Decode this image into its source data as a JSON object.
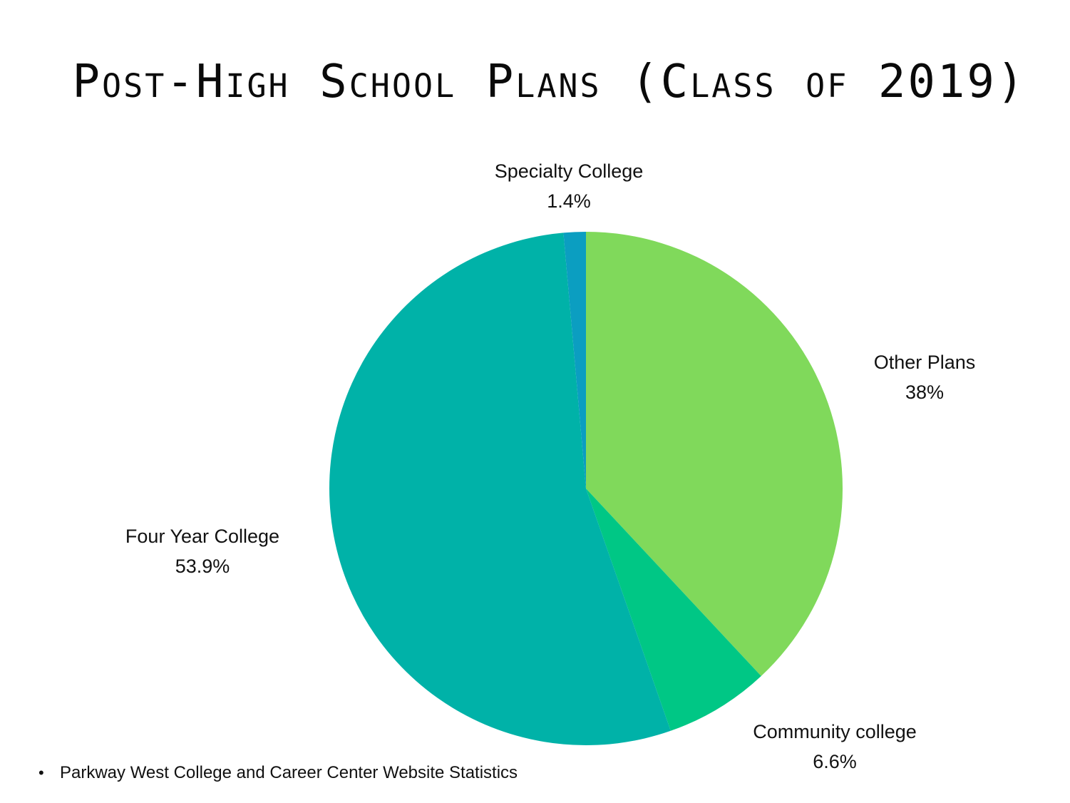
{
  "chart_data": {
    "type": "pie",
    "title": "Post-High School Plans (Class of 2019)",
    "slices": [
      {
        "label": "Other Plans",
        "value": 38,
        "value_label": "38%",
        "color": "#80d95b"
      },
      {
        "label": "Community college",
        "value": 6.6,
        "value_label": "6.6%",
        "color": "#00c785"
      },
      {
        "label": "Four Year College",
        "value": 53.9,
        "value_label": "53.9%",
        "color": "#00b2a8"
      },
      {
        "label": "Specialty College",
        "value": 1.4,
        "value_label": "1.4%",
        "color": "#0b9ec1"
      }
    ],
    "start_angle": "top (12 o'clock)",
    "direction": "clockwise"
  },
  "footnote": "Parkway West College and Career Center Website Statistics"
}
